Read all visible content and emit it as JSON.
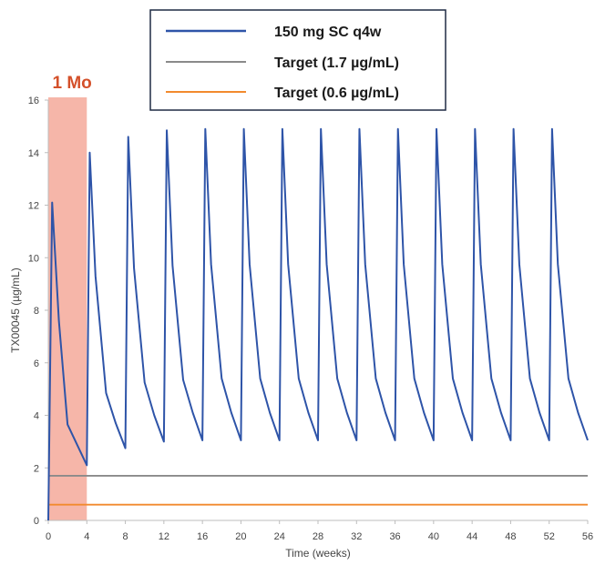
{
  "chart_data": {
    "type": "line",
    "xlabel": "Time (weeks)",
    "ylabel": "TX00045 (µg/mL)",
    "xlim": [
      0,
      56
    ],
    "ylim": [
      0,
      16
    ],
    "x_ticks": [
      0,
      4,
      8,
      12,
      16,
      20,
      24,
      28,
      32,
      36,
      40,
      44,
      48,
      52,
      56
    ],
    "y_ticks": [
      0,
      2,
      4,
      6,
      8,
      10,
      12,
      14,
      16
    ],
    "grid": false,
    "legend_position": "top-center",
    "series": [
      {
        "name": "150 mg SC q4w",
        "color": "#2e54a8",
        "x": [
          0,
          0.4,
          1.1,
          2,
          4,
          4.3,
          4.9,
          6,
          7,
          8,
          8.3,
          8.9,
          10,
          11,
          12,
          12.3,
          12.9,
          14,
          15,
          16,
          16.3,
          16.9,
          18,
          19,
          20,
          20.3,
          20.9,
          22,
          23,
          24,
          24.3,
          24.9,
          26,
          27,
          28,
          28.3,
          28.9,
          30,
          31,
          32,
          32.3,
          32.9,
          34,
          35,
          36,
          36.3,
          36.9,
          38,
          39,
          40,
          40.3,
          40.9,
          42,
          43,
          44,
          44.3,
          44.9,
          46,
          47,
          48,
          48.3,
          48.9,
          50,
          51,
          52,
          52.3,
          52.9,
          54,
          55,
          56
        ],
        "y": [
          0,
          12.1,
          7.6,
          3.65,
          2.1,
          14.0,
          9.3,
          4.85,
          3.7,
          2.75,
          14.6,
          9.6,
          5.25,
          4.0,
          3.0,
          14.85,
          9.7,
          5.35,
          4.1,
          3.05,
          14.9,
          9.75,
          5.4,
          4.1,
          3.05,
          14.9,
          9.75,
          5.4,
          4.1,
          3.05,
          14.9,
          9.75,
          5.4,
          4.1,
          3.05,
          14.9,
          9.75,
          5.4,
          4.1,
          3.05,
          14.9,
          9.75,
          5.4,
          4.1,
          3.05,
          14.9,
          9.75,
          5.4,
          4.1,
          3.05,
          14.9,
          9.75,
          5.4,
          4.1,
          3.05,
          14.9,
          9.75,
          5.4,
          4.1,
          3.05,
          14.9,
          9.75,
          5.4,
          4.1,
          3.05,
          14.9,
          9.75,
          5.4,
          4.1,
          3.05
        ]
      },
      {
        "name": "Target (1.7 µg/mL)",
        "color": "#8a8a8a",
        "x": [
          0,
          56
        ],
        "y": [
          1.7,
          1.7
        ]
      },
      {
        "name": "Target (0.6 µg/mL)",
        "color": "#f28a2e",
        "x": [
          0,
          56
        ],
        "y": [
          0.6,
          0.6
        ]
      }
    ],
    "annotations": [
      {
        "type": "shaded-region",
        "label": "1 Mo",
        "x_range": [
          0,
          4
        ],
        "color": "#f4a99a",
        "label_color": "#d4502a"
      }
    ]
  }
}
